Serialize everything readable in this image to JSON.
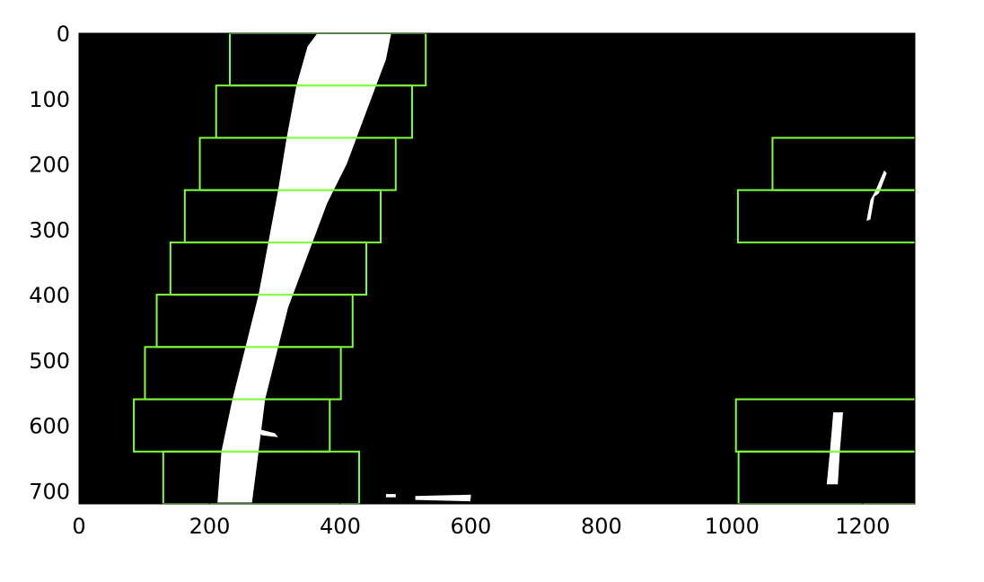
{
  "chart_data": {
    "type": "image",
    "xlim": [
      0,
      1280
    ],
    "ylim": [
      720,
      0
    ],
    "x_ticks": [
      0,
      200,
      400,
      600,
      800,
      1000,
      1200
    ],
    "y_ticks": [
      0,
      100,
      200,
      300,
      400,
      500,
      600,
      700
    ],
    "x_tick_labels": [
      "0",
      "200",
      "400",
      "600",
      "800",
      "1000",
      "1200"
    ],
    "y_tick_labels": [
      "0",
      "100",
      "200",
      "300",
      "400",
      "500",
      "600",
      "700"
    ],
    "background_color": "#000000",
    "lane_pixel_color": "#ffffff",
    "window_color": "#7fff3f",
    "sliding_windows": [
      {
        "lane": "left",
        "x0": 129,
        "x1": 429,
        "y0": 640,
        "y1": 720
      },
      {
        "lane": "left",
        "x0": 84,
        "x1": 384,
        "y0": 560,
        "y1": 640
      },
      {
        "lane": "left",
        "x0": 101,
        "x1": 401,
        "y0": 480,
        "y1": 560
      },
      {
        "lane": "left",
        "x0": 119,
        "x1": 419,
        "y0": 400,
        "y1": 480
      },
      {
        "lane": "left",
        "x0": 140,
        "x1": 440,
        "y0": 320,
        "y1": 400
      },
      {
        "lane": "left",
        "x0": 162,
        "x1": 462,
        "y0": 240,
        "y1": 320
      },
      {
        "lane": "left",
        "x0": 185,
        "x1": 485,
        "y0": 160,
        "y1": 240
      },
      {
        "lane": "left",
        "x0": 210,
        "x1": 510,
        "y0": 80,
        "y1": 160
      },
      {
        "lane": "left",
        "x0": 231,
        "x1": 531,
        "y0": 0,
        "y1": 80
      },
      {
        "lane": "right",
        "x0": 1010,
        "x1": 1310,
        "y0": 640,
        "y1": 720
      },
      {
        "lane": "right",
        "x0": 1006,
        "x1": 1306,
        "y0": 560,
        "y1": 640
      },
      {
        "lane": "right",
        "x0": 1009,
        "x1": 1309,
        "y0": 240,
        "y1": 320
      },
      {
        "lane": "right",
        "x0": 1062,
        "x1": 1362,
        "y0": 160,
        "y1": 240
      }
    ],
    "lane_pixels": [
      {
        "name": "left-lane-line",
        "points": [
          [
            365,
            0
          ],
          [
            478,
            0
          ],
          [
            470,
            40
          ],
          [
            440,
            120
          ],
          [
            410,
            200
          ],
          [
            380,
            260
          ],
          [
            350,
            340
          ],
          [
            320,
            420
          ],
          [
            300,
            500
          ],
          [
            285,
            560
          ],
          [
            275,
            640
          ],
          [
            265,
            718
          ],
          [
            212,
            718
          ],
          [
            218,
            640
          ],
          [
            235,
            560
          ],
          [
            255,
            480
          ],
          [
            275,
            400
          ],
          [
            290,
            320
          ],
          [
            305,
            240
          ],
          [
            318,
            160
          ],
          [
            333,
            80
          ],
          [
            350,
            20
          ]
        ]
      },
      {
        "name": "left-lane-blob",
        "points": [
          [
            272,
            605
          ],
          [
            300,
            612
          ],
          [
            305,
            618
          ],
          [
            280,
            615
          ]
        ]
      },
      {
        "name": "right-lane-lower",
        "points": [
          [
            1155,
            580
          ],
          [
            1170,
            580
          ],
          [
            1165,
            640
          ],
          [
            1162,
            690
          ],
          [
            1145,
            690
          ],
          [
            1150,
            640
          ]
        ]
      },
      {
        "name": "right-lane-upper",
        "points": [
          [
            1233,
            210
          ],
          [
            1237,
            214
          ],
          [
            1225,
            245
          ],
          [
            1218,
            250
          ],
          [
            1212,
            285
          ],
          [
            1206,
            287
          ],
          [
            1212,
            255
          ],
          [
            1220,
            240
          ]
        ]
      },
      {
        "name": "bottom-speck-1",
        "points": [
          [
            470,
            705
          ],
          [
            485,
            705
          ],
          [
            485,
            710
          ],
          [
            470,
            710
          ]
        ]
      },
      {
        "name": "bottom-speck-2",
        "points": [
          [
            515,
            708
          ],
          [
            600,
            706
          ],
          [
            600,
            716
          ],
          [
            515,
            714
          ]
        ]
      }
    ]
  }
}
